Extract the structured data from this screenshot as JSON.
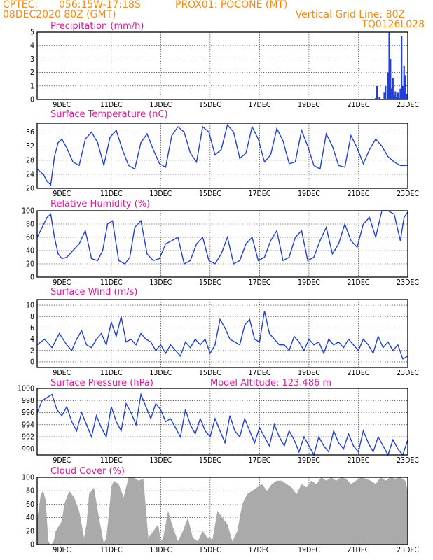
{
  "header": {
    "source": "CPTEC:",
    "coords": "056:15W-17:18S",
    "location": "PROX01: POCONE (MT)",
    "run": "08DEC2020 80Z (GMT)",
    "grid_note": "Vertical Grid Line: 80Z",
    "model_code": "TQ0126L028"
  },
  "x_axis": {
    "ticks": [
      "9DEC",
      "11DEC",
      "13DEC",
      "15DEC",
      "17DEC",
      "19DEC",
      "21DEC",
      "23DEC"
    ],
    "tick_days": [
      1,
      3,
      5,
      7,
      9,
      11,
      13,
      15
    ],
    "range_days": [
      0,
      15
    ]
  },
  "colors": {
    "title": "#e0189a",
    "header": "#ff8800",
    "series": "#1f3fe0",
    "cloud": "#aaaaaa",
    "bars": "#1f3fe0"
  },
  "chart_data": [
    {
      "id": "precip",
      "type": "bar",
      "title": "Precipitation (mm/h)",
      "ylim": [
        0,
        5
      ],
      "yticks": [
        0,
        1,
        2,
        3,
        4,
        5
      ],
      "grid": true,
      "x": [
        12.0,
        12.05,
        12.35,
        12.4,
        12.5,
        12.8,
        12.9,
        13.0,
        13.2,
        13.25,
        13.4,
        13.5,
        13.6,
        13.7,
        13.75,
        13.85,
        14.05,
        14.1,
        14.2,
        14.25,
        14.3,
        14.35,
        14.4,
        14.45,
        14.5,
        14.55,
        14.6,
        14.65,
        14.7,
        14.75,
        14.8,
        14.85,
        14.9,
        14.95,
        15.0
      ],
      "values": [
        0.05,
        0.03,
        0.04,
        0.02,
        0.03,
        0.02,
        0.05,
        0.03,
        0.04,
        0.06,
        0.05,
        0.04,
        0.03,
        0.1,
        1.0,
        0.2,
        0.5,
        1.0,
        2.0,
        5.0,
        3.0,
        0.8,
        1.6,
        0.3,
        0.6,
        0.2,
        0.5,
        0.1,
        0.8,
        4.7,
        1.0,
        2.5,
        1.8,
        0.4,
        0.1
      ]
    },
    {
      "id": "temp",
      "type": "line",
      "title": "Surface Temperature (nC)",
      "ylim": [
        20,
        38.5
      ],
      "yticks": [
        20,
        24,
        28,
        32,
        36
      ],
      "grid": true,
      "x": [
        0,
        0.25,
        0.4,
        0.55,
        0.7,
        0.85,
        1.0,
        1.2,
        1.45,
        1.7,
        1.95,
        2.2,
        2.45,
        2.7,
        2.95,
        3.2,
        3.45,
        3.7,
        3.95,
        4.2,
        4.45,
        4.7,
        4.95,
        5.2,
        5.45,
        5.7,
        5.95,
        6.2,
        6.45,
        6.7,
        6.95,
        7.2,
        7.45,
        7.7,
        7.95,
        8.2,
        8.45,
        8.7,
        8.95,
        9.2,
        9.45,
        9.7,
        9.95,
        10.2,
        10.45,
        10.7,
        10.95,
        11.2,
        11.45,
        11.7,
        11.95,
        12.2,
        12.45,
        12.7,
        12.95,
        13.2,
        13.45,
        13.7,
        13.95,
        14.2,
        14.45,
        14.7,
        15.0
      ],
      "values": [
        25.5,
        24.0,
        22.0,
        21.0,
        29.0,
        33.0,
        34.0,
        31.5,
        27.5,
        26.5,
        34.0,
        36.0,
        33.0,
        26.5,
        34.5,
        36.5,
        31.0,
        26.5,
        25.5,
        33.0,
        35.5,
        31.0,
        27.0,
        26.0,
        35.0,
        37.5,
        36.0,
        30.0,
        27.5,
        37.5,
        36.0,
        29.5,
        31.0,
        38.0,
        36.0,
        28.5,
        30.0,
        37.5,
        34.0,
        27.5,
        29.5,
        37.0,
        33.5,
        27.0,
        27.5,
        36.5,
        32.0,
        26.5,
        25.5,
        35.5,
        32.0,
        26.5,
        26.0,
        35.0,
        31.5,
        27.0,
        31.0,
        34.0,
        32.0,
        29.0,
        27.5,
        26.5,
        26.5
      ]
    },
    {
      "id": "rh",
      "type": "line",
      "title": "Relative Humidity (%)",
      "ylim": [
        0,
        100
      ],
      "yticks": [
        0,
        20,
        40,
        60,
        80,
        100
      ],
      "grid": true,
      "x": [
        0,
        0.2,
        0.4,
        0.55,
        0.7,
        0.85,
        1.0,
        1.2,
        1.45,
        1.7,
        1.95,
        2.2,
        2.45,
        2.65,
        2.85,
        3.05,
        3.3,
        3.55,
        3.75,
        3.95,
        4.2,
        4.45,
        4.7,
        4.95,
        5.2,
        5.45,
        5.7,
        5.95,
        6.2,
        6.45,
        6.7,
        6.95,
        7.2,
        7.45,
        7.7,
        7.95,
        8.2,
        8.45,
        8.7,
        8.95,
        9.2,
        9.45,
        9.7,
        9.95,
        10.2,
        10.45,
        10.7,
        10.95,
        11.2,
        11.45,
        11.7,
        11.95,
        12.2,
        12.45,
        12.7,
        12.95,
        13.2,
        13.45,
        13.7,
        13.95,
        14.2,
        14.45,
        14.7,
        14.85,
        15.0
      ],
      "values": [
        60,
        75,
        90,
        95,
        60,
        35,
        28,
        30,
        40,
        50,
        70,
        28,
        25,
        40,
        80,
        85,
        25,
        20,
        30,
        75,
        85,
        35,
        25,
        28,
        50,
        55,
        60,
        20,
        25,
        50,
        60,
        25,
        20,
        35,
        60,
        20,
        25,
        50,
        60,
        25,
        30,
        55,
        70,
        25,
        30,
        60,
        70,
        25,
        30,
        55,
        75,
        35,
        50,
        80,
        55,
        45,
        80,
        90,
        60,
        100,
        100,
        95,
        55,
        90,
        98
      ]
    },
    {
      "id": "wind",
      "type": "line",
      "title": "Surface Wind (m/s)",
      "ylim": [
        -1,
        11
      ],
      "yticks": [
        0,
        2,
        4,
        6,
        8,
        10
      ],
      "grid": true,
      "x": [
        0,
        0.3,
        0.6,
        0.9,
        1.2,
        1.4,
        1.6,
        1.8,
        2.0,
        2.2,
        2.4,
        2.6,
        2.8,
        3.0,
        3.2,
        3.4,
        3.6,
        3.8,
        4.0,
        4.2,
        4.4,
        4.6,
        4.8,
        5.0,
        5.2,
        5.4,
        5.6,
        5.8,
        6.0,
        6.2,
        6.4,
        6.6,
        6.8,
        7.0,
        7.2,
        7.4,
        7.6,
        7.8,
        8.0,
        8.2,
        8.4,
        8.6,
        8.8,
        9.0,
        9.2,
        9.4,
        9.6,
        9.8,
        10.0,
        10.2,
        10.4,
        10.6,
        10.8,
        11.0,
        11.2,
        11.4,
        11.6,
        11.8,
        12.0,
        12.2,
        12.4,
        12.6,
        12.8,
        13.0,
        13.2,
        13.4,
        13.6,
        13.8,
        14.0,
        14.2,
        14.4,
        14.6,
        14.8,
        15.0
      ],
      "values": [
        3.0,
        4.0,
        2.5,
        5.0,
        3.0,
        2.0,
        4.0,
        5.5,
        3.0,
        2.5,
        4.0,
        5.0,
        3.0,
        7.0,
        4.5,
        8.0,
        3.5,
        4.0,
        3.0,
        5.0,
        4.0,
        3.5,
        2.0,
        3.0,
        1.5,
        3.0,
        2.0,
        1.0,
        3.5,
        2.5,
        4.0,
        3.0,
        4.0,
        1.5,
        3.0,
        7.5,
        6.0,
        4.0,
        3.5,
        3.0,
        6.5,
        7.5,
        4.0,
        3.5,
        9.0,
        5.0,
        4.0,
        3.0,
        3.0,
        2.0,
        4.5,
        3.5,
        2.0,
        4.0,
        3.0,
        3.5,
        1.5,
        4.0,
        3.0,
        3.5,
        2.5,
        4.0,
        3.0,
        2.0,
        4.0,
        3.0,
        1.5,
        4.5,
        2.5,
        3.5,
        2.0,
        3.0,
        0.5,
        1.0
      ]
    },
    {
      "id": "pressure",
      "type": "line",
      "title": "Surface Pressure (hPa)",
      "annotation": "Model Altitude: 123.486  m",
      "ylim": [
        989,
        1000
      ],
      "yticks": [
        990,
        992,
        994,
        996,
        998,
        1000
      ],
      "grid": true,
      "x": [
        0,
        0.2,
        0.4,
        0.6,
        0.8,
        1.0,
        1.2,
        1.4,
        1.6,
        1.8,
        2.0,
        2.2,
        2.4,
        2.6,
        2.8,
        3.0,
        3.2,
        3.4,
        3.6,
        3.8,
        4.0,
        4.2,
        4.4,
        4.6,
        4.8,
        5.0,
        5.2,
        5.4,
        5.6,
        5.8,
        6.0,
        6.2,
        6.4,
        6.6,
        6.8,
        7.0,
        7.2,
        7.4,
        7.6,
        7.8,
        8.0,
        8.2,
        8.4,
        8.6,
        8.8,
        9.0,
        9.2,
        9.4,
        9.6,
        9.8,
        10.0,
        10.2,
        10.4,
        10.6,
        10.8,
        11.0,
        11.2,
        11.4,
        11.6,
        11.8,
        12.0,
        12.2,
        12.4,
        12.6,
        12.8,
        13.0,
        13.2,
        13.4,
        13.6,
        13.8,
        14.0,
        14.2,
        14.4,
        14.6,
        14.8,
        15.0
      ],
      "values": [
        996.0,
        998.0,
        998.5,
        999.0,
        996.5,
        995.5,
        997.0,
        994.5,
        993.0,
        996.0,
        994.0,
        992.0,
        995.5,
        993.5,
        992.0,
        997.0,
        994.5,
        993.0,
        997.5,
        996.0,
        994.0,
        999.0,
        997.0,
        995.0,
        997.5,
        996.5,
        994.5,
        995.0,
        993.5,
        992.0,
        996.5,
        994.0,
        992.5,
        995.0,
        993.0,
        992.0,
        995.0,
        993.0,
        991.0,
        995.5,
        993.0,
        992.0,
        995.0,
        993.0,
        991.0,
        993.5,
        992.0,
        990.5,
        994.0,
        992.0,
        990.5,
        993.0,
        991.5,
        989.5,
        992.0,
        990.5,
        989.0,
        992.0,
        990.5,
        989.5,
        993.0,
        991.0,
        990.0,
        992.5,
        990.5,
        989.5,
        993.0,
        991.0,
        989.5,
        992.0,
        990.5,
        989.0,
        991.5,
        990.0,
        989.0,
        991.5
      ]
    },
    {
      "id": "cloud",
      "type": "area",
      "title": "Cloud Cover (%)",
      "ylim": [
        0,
        100
      ],
      "yticks": [
        0,
        20,
        40,
        60,
        80,
        100
      ],
      "grid": true,
      "x": [
        0,
        0.05,
        0.15,
        0.25,
        0.35,
        0.45,
        0.55,
        0.65,
        0.7,
        0.75,
        1.0,
        1.1,
        1.3,
        1.5,
        1.7,
        1.9,
        2.0,
        2.1,
        2.3,
        2.5,
        2.7,
        2.8,
        2.9,
        3.0,
        3.1,
        3.3,
        3.5,
        3.7,
        3.9,
        4.1,
        4.3,
        4.5,
        4.7,
        4.9,
        5.0,
        5.1,
        5.3,
        5.5,
        5.7,
        5.9,
        6.1,
        6.3,
        6.5,
        6.7,
        6.9,
        7.1,
        7.3,
        7.5,
        7.7,
        7.9,
        8.1,
        8.3,
        8.5,
        8.7,
        8.9,
        9.1,
        9.3,
        9.5,
        9.7,
        9.9,
        10.1,
        10.3,
        10.5,
        10.7,
        10.9,
        11.1,
        11.3,
        11.5,
        11.7,
        11.9,
        12.1,
        12.3,
        12.5,
        12.7,
        12.9,
        13.1,
        13.3,
        13.5,
        13.7,
        13.9,
        14.1,
        14.3,
        14.5,
        14.7,
        14.9,
        15.0
      ],
      "values": [
        40,
        50,
        75,
        80,
        65,
        5,
        0,
        3,
        10,
        20,
        35,
        60,
        80,
        70,
        50,
        10,
        30,
        75,
        85,
        40,
        2,
        10,
        45,
        85,
        95,
        90,
        70,
        100,
        100,
        95,
        98,
        10,
        20,
        30,
        5,
        10,
        50,
        25,
        5,
        20,
        40,
        10,
        5,
        20,
        10,
        8,
        50,
        40,
        30,
        5,
        20,
        60,
        75,
        80,
        85,
        90,
        80,
        90,
        95,
        95,
        90,
        85,
        75,
        90,
        85,
        95,
        90,
        100,
        95,
        100,
        95,
        100,
        98,
        90,
        95,
        100,
        98,
        95,
        90,
        100,
        95,
        100,
        98,
        100,
        95,
        80
      ]
    }
  ]
}
